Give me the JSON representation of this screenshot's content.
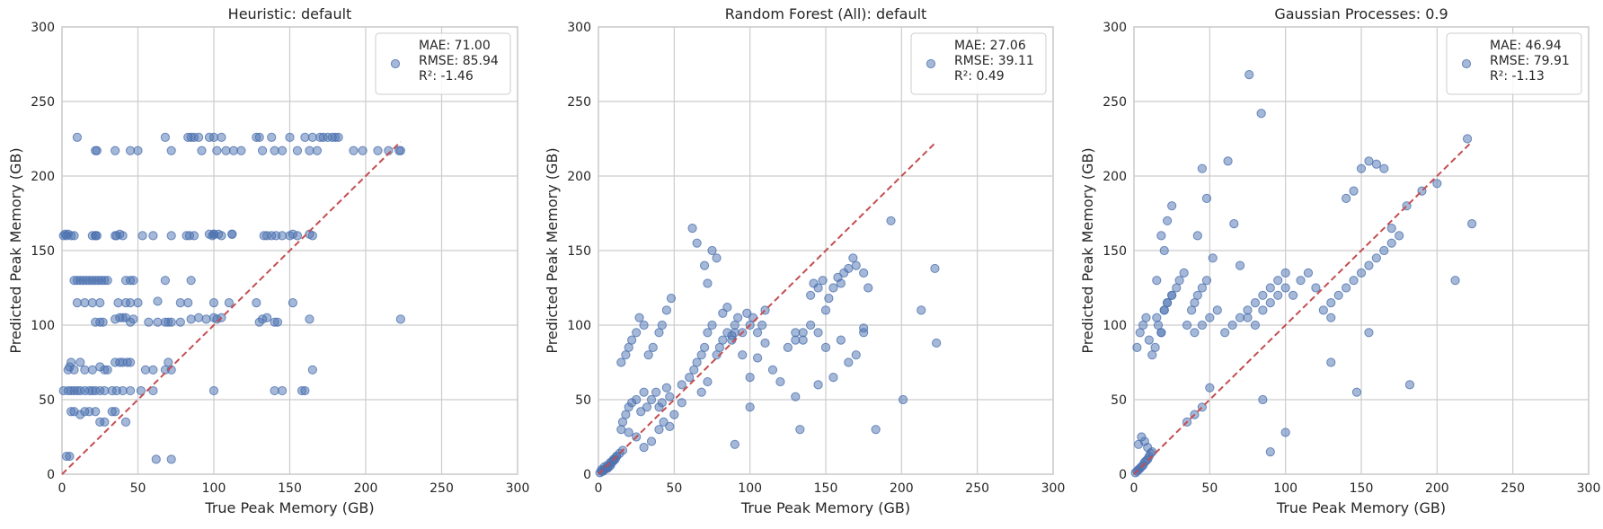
{
  "chart_data": [
    {
      "type": "scatter",
      "title": "Heuristic: default",
      "xlabel": "True Peak Memory (GB)",
      "ylabel": "Predicted Peak Memory (GB)",
      "xlim": [
        0,
        300
      ],
      "ylim": [
        0,
        300
      ],
      "xticks": [
        "0",
        "50",
        "100",
        "150",
        "200",
        "250",
        "300"
      ],
      "yticks": [
        "0",
        "50",
        "100",
        "150",
        "200",
        "250",
        "300"
      ],
      "grid": true,
      "legend_position": "top-right",
      "legend": [
        "MAE: 71.00",
        "RMSE: 85.94",
        "R²: -1.46"
      ],
      "reference_line": {
        "from": [
          0,
          0
        ],
        "to": [
          223,
          223
        ],
        "style": "dashed",
        "color": "#c44e52"
      },
      "x": [
        10,
        22,
        23,
        35,
        45,
        50,
        68,
        72,
        83,
        85,
        87,
        90,
        92,
        97,
        100,
        102,
        105,
        108,
        113,
        118,
        128,
        130,
        132,
        138,
        140,
        145,
        150,
        155,
        160,
        163,
        165,
        168,
        170,
        172,
        175,
        178,
        180,
        182,
        192,
        198,
        208,
        215,
        222,
        223,
        22,
        23,
        40,
        60,
        72,
        97,
        100,
        103,
        105,
        112,
        133,
        138,
        141,
        145,
        150,
        155,
        1,
        2,
        3,
        4,
        6,
        8,
        20,
        22,
        35,
        36,
        38,
        53,
        82,
        84,
        87,
        99,
        100,
        112,
        135,
        152,
        163,
        165,
        8,
        10,
        12,
        14,
        16,
        18,
        20,
        22,
        24,
        26,
        28,
        30,
        42,
        45,
        47,
        68,
        85,
        10,
        15,
        20,
        25,
        37,
        42,
        45,
        50,
        63,
        78,
        83,
        100,
        110,
        128,
        152,
        163,
        22,
        25,
        27,
        35,
        38,
        40,
        42,
        45,
        47,
        57,
        63,
        68,
        70,
        72,
        78,
        85,
        90,
        95,
        100,
        102,
        105,
        130,
        132,
        135,
        140,
        142,
        165,
        223,
        4,
        5,
        6,
        8,
        12,
        15,
        20,
        25,
        28,
        30,
        35,
        38,
        40,
        43,
        45,
        55,
        60,
        68,
        70,
        72,
        1,
        4,
        6,
        8,
        10,
        12,
        15,
        18,
        20,
        22,
        25,
        28,
        33,
        36,
        40,
        45,
        52,
        60,
        100,
        140,
        145,
        158,
        160,
        6,
        8,
        12,
        15,
        18,
        22,
        25,
        28,
        33,
        35,
        42,
        3,
        5,
        62,
        72
      ],
      "y": [
        226,
        217,
        217,
        217,
        217,
        217,
        226,
        217,
        226,
        226,
        226,
        226,
        217,
        226,
        226,
        217,
        226,
        217,
        217,
        217,
        226,
        226,
        217,
        226,
        217,
        217,
        226,
        217,
        226,
        217,
        226,
        217,
        226,
        226,
        226,
        226,
        226,
        226,
        217,
        217,
        217,
        217,
        217,
        217,
        160,
        160,
        160,
        160,
        160,
        161,
        161,
        161,
        160,
        161,
        160,
        160,
        160,
        160,
        160,
        160,
        160,
        161,
        160,
        161,
        160,
        160,
        160,
        160,
        160,
        160,
        161,
        160,
        160,
        160,
        160,
        160,
        161,
        161,
        160,
        161,
        161,
        160,
        130,
        130,
        130,
        130,
        130,
        130,
        130,
        130,
        130,
        130,
        130,
        130,
        130,
        130,
        130,
        130,
        130,
        115,
        115,
        115,
        115,
        115,
        115,
        115,
        115,
        116,
        115,
        115,
        115,
        115,
        115,
        115,
        104,
        102,
        102,
        102,
        104,
        105,
        105,
        105,
        102,
        104,
        102,
        102,
        102,
        102,
        102,
        102,
        104,
        105,
        104,
        105,
        104,
        105,
        102,
        104,
        105,
        102,
        102,
        70,
        104,
        70,
        72,
        75,
        70,
        75,
        70,
        70,
        72,
        70,
        70,
        75,
        75,
        75,
        75,
        75,
        70,
        70,
        70,
        75,
        70,
        56,
        56,
        56,
        56,
        56,
        56,
        56,
        56,
        56,
        56,
        56,
        56,
        56,
        56,
        56,
        56,
        56,
        56,
        56,
        56,
        56,
        56,
        56,
        42,
        42,
        40,
        42,
        42,
        42,
        35,
        35,
        42,
        42,
        35,
        12,
        12,
        10,
        10
      ]
    },
    {
      "type": "scatter",
      "title": "Random Forest (All): default",
      "xlabel": "True Peak Memory (GB)",
      "ylabel": "Predicted Peak Memory (GB)",
      "xlim": [
        0,
        300
      ],
      "ylim": [
        0,
        300
      ],
      "xticks": [
        "0",
        "50",
        "100",
        "150",
        "200",
        "250",
        "300"
      ],
      "yticks": [
        "0",
        "50",
        "100",
        "150",
        "200",
        "250",
        "300"
      ],
      "grid": true,
      "legend_position": "top-right",
      "legend": [
        "MAE: 27.06",
        "RMSE: 39.11",
        "R²: 0.49"
      ],
      "reference_line": {
        "from": [
          0,
          0
        ],
        "to": [
          223,
          223
        ],
        "style": "dashed",
        "color": "#c44e52"
      },
      "x": [
        1,
        2,
        3,
        4,
        5,
        6,
        7,
        8,
        9,
        10,
        11,
        12,
        2,
        4,
        6,
        8,
        10,
        12,
        14,
        16,
        15,
        16,
        18,
        20,
        22,
        25,
        28,
        30,
        32,
        35,
        38,
        40,
        42,
        45,
        47,
        50,
        15,
        18,
        20,
        22,
        25,
        27,
        30,
        33,
        36,
        40,
        42,
        45,
        48,
        55,
        60,
        63,
        65,
        68,
        70,
        72,
        75,
        78,
        80,
        82,
        85,
        88,
        90,
        92,
        95,
        98,
        100,
        102,
        105,
        108,
        110,
        62,
        65,
        70,
        72,
        75,
        78,
        82,
        85,
        88,
        90,
        95,
        100,
        105,
        110,
        115,
        120,
        125,
        130,
        135,
        140,
        142,
        145,
        148,
        150,
        152,
        155,
        158,
        160,
        162,
        165,
        168,
        170,
        175,
        178,
        130,
        135,
        140,
        145,
        150,
        160,
        165,
        170,
        175,
        90,
        100,
        130,
        133,
        145,
        155,
        175,
        183,
        193,
        201,
        213,
        222,
        223,
        20,
        25,
        30,
        35,
        40,
        43,
        47,
        55,
        68,
        72
      ],
      "y": [
        1,
        2,
        2,
        3,
        4,
        4,
        5,
        6,
        8,
        9,
        10,
        12,
        3,
        5,
        6,
        8,
        10,
        12,
        14,
        16,
        30,
        35,
        40,
        45,
        48,
        50,
        42,
        55,
        45,
        50,
        55,
        45,
        48,
        58,
        52,
        40,
        75,
        80,
        85,
        90,
        95,
        105,
        100,
        80,
        85,
        95,
        100,
        110,
        118,
        60,
        65,
        70,
        75,
        80,
        85,
        95,
        100,
        80,
        85,
        90,
        95,
        90,
        100,
        105,
        95,
        108,
        100,
        105,
        95,
        100,
        110,
        165,
        155,
        140,
        128,
        150,
        145,
        108,
        112,
        93,
        95,
        80,
        65,
        78,
        88,
        70,
        62,
        85,
        90,
        95,
        120,
        128,
        125,
        130,
        110,
        118,
        125,
        132,
        128,
        135,
        138,
        145,
        140,
        135,
        125,
        95,
        90,
        100,
        95,
        85,
        90,
        75,
        80,
        95,
        20,
        45,
        52,
        30,
        60,
        65,
        98,
        30,
        170,
        50,
        110,
        138,
        88,
        28,
        25,
        18,
        22,
        30,
        35,
        32,
        48,
        55,
        62
      ],
      "series_color": "#4c72b0"
    },
    {
      "type": "scatter",
      "title": "Gaussian Processes: 0.9",
      "xlabel": "True Peak Memory (GB)",
      "ylabel": "Predicted Peak Memory (GB)",
      "xlim": [
        0,
        300
      ],
      "ylim": [
        0,
        300
      ],
      "xticks": [
        "0",
        "50",
        "100",
        "150",
        "200",
        "250",
        "300"
      ],
      "yticks": [
        "0",
        "50",
        "100",
        "150",
        "200",
        "250",
        "300"
      ],
      "grid": true,
      "legend_position": "top-right",
      "legend": [
        "MAE: 46.94",
        "RMSE: 79.91",
        "R²: -1.13"
      ],
      "reference_line": {
        "from": [
          0,
          0
        ],
        "to": [
          223,
          223
        ],
        "style": "dashed",
        "color": "#c44e52"
      },
      "x": [
        1,
        2,
        3,
        4,
        5,
        6,
        7,
        8,
        9,
        10,
        11,
        12,
        3,
        5,
        7,
        9,
        2,
        4,
        6,
        8,
        10,
        12,
        14,
        16,
        18,
        20,
        22,
        25,
        15,
        18,
        20,
        22,
        25,
        28,
        30,
        33,
        35,
        38,
        40,
        42,
        45,
        48,
        40,
        45,
        50,
        55,
        60,
        65,
        70,
        75,
        80,
        85,
        90,
        95,
        100,
        75,
        80,
        85,
        90,
        95,
        100,
        105,
        110,
        115,
        120,
        125,
        130,
        130,
        135,
        140,
        145,
        150,
        155,
        160,
        165,
        170,
        175,
        15,
        18,
        20,
        22,
        25,
        42,
        45,
        48,
        52,
        62,
        66,
        70,
        76,
        84,
        140,
        145,
        150,
        155,
        160,
        165,
        170,
        180,
        190,
        200,
        212,
        220,
        223,
        85,
        90,
        100,
        130,
        147,
        155,
        182,
        35,
        40,
        45,
        50
      ],
      "y": [
        1,
        2,
        3,
        4,
        5,
        6,
        8,
        9,
        10,
        12,
        14,
        15,
        20,
        25,
        22,
        18,
        85,
        95,
        100,
        105,
        90,
        80,
        85,
        100,
        95,
        110,
        115,
        120,
        105,
        95,
        110,
        115,
        120,
        125,
        130,
        135,
        100,
        110,
        115,
        120,
        125,
        130,
        95,
        100,
        105,
        110,
        95,
        100,
        105,
        110,
        115,
        120,
        125,
        130,
        135,
        105,
        100,
        110,
        115,
        120,
        125,
        120,
        130,
        135,
        125,
        110,
        105,
        115,
        120,
        125,
        130,
        135,
        140,
        145,
        150,
        155,
        160,
        130,
        160,
        150,
        170,
        180,
        160,
        205,
        185,
        145,
        210,
        168,
        140,
        268,
        242,
        185,
        190,
        205,
        210,
        208,
        205,
        165,
        180,
        190,
        195,
        130,
        225,
        168,
        50,
        15,
        28,
        75,
        55,
        95,
        60,
        35,
        40,
        45,
        58
      ]
    }
  ]
}
